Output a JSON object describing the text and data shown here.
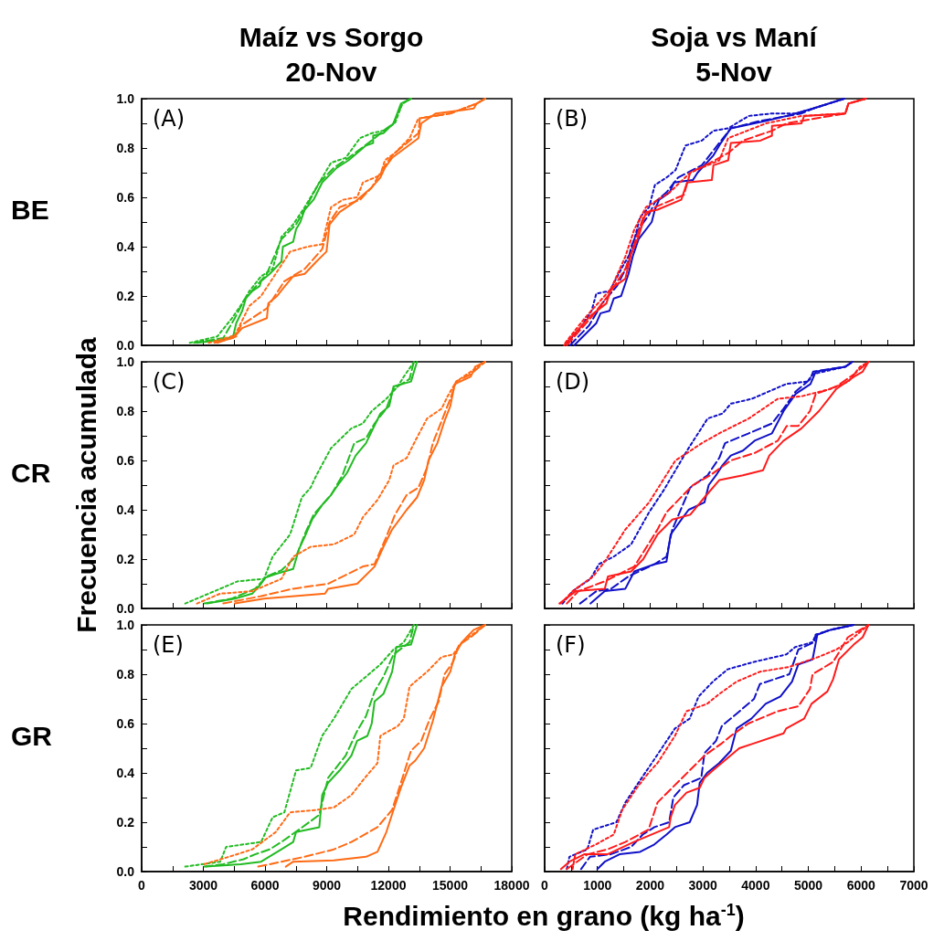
{
  "chart_data": [
    {
      "type": "line",
      "title": "Maíz vs Sorgo",
      "subtitle": "20-Nov",
      "annotations": [
        "(A)",
        "BE"
      ],
      "tick_labels": "y",
      "xlim": [
        0,
        18000
      ],
      "xticks": [
        0,
        {
          "value": 1500,
          "label": null
        },
        3000,
        {
          "value": 4500,
          "label": null
        },
        6000,
        {
          "value": 7500,
          "label": null
        },
        9000,
        {
          "value": 10500,
          "label": null
        },
        12000,
        {
          "value": 13500,
          "label": null
        },
        15000,
        {
          "value": 16500,
          "label": null
        },
        18000
      ],
      "ylim": [
        0,
        1
      ],
      "yticks": [
        {
          "value": 0,
          "label": "0.0"
        },
        {
          "value": 0.1,
          "label": null
        },
        0.2,
        {
          "value": 0.3,
          "label": null
        },
        0.4,
        {
          "value": 0.5,
          "label": null
        },
        0.6,
        {
          "value": 0.7,
          "label": null
        },
        0.8,
        {
          "value": 0.9,
          "label": null
        },
        {
          "value": 1,
          "label": "1.0"
        }
      ],
      "series": [
        {
          "color": "#22bb22",
          "line_style": "solid",
          "x": [
            2690,
            4110,
            4460,
            4600,
            4890,
            5070,
            5380,
            5740,
            5810,
            6230,
            6800,
            6870,
            7370,
            7510,
            7720,
            7930,
            8360,
            8780,
            9490,
            10060,
            10910,
            11260,
            11260,
            11760,
            12250,
            12610,
            13100
          ],
          "values": [
            0.01,
            0.024,
            0.04,
            0.09,
            0.14,
            0.19,
            0.22,
            0.24,
            0.26,
            0.29,
            0.34,
            0.4,
            0.42,
            0.47,
            0.5,
            0.55,
            0.59,
            0.66,
            0.72,
            0.75,
            0.81,
            0.82,
            0.85,
            0.86,
            0.9,
            0.98,
            1.0
          ]
        },
        {
          "color": "#22bb22",
          "line_style": "dashed",
          "x": [
            2550,
            3970,
            4530,
            5030,
            5670,
            6090,
            6800,
            7510,
            7930,
            8640,
            9350,
            10060,
            11190,
            11760,
            12250,
            12680,
            13100
          ],
          "values": [
            0.01,
            0.03,
            0.11,
            0.19,
            0.25,
            0.29,
            0.43,
            0.49,
            0.55,
            0.66,
            0.72,
            0.76,
            0.83,
            0.87,
            0.9,
            0.98,
            1.0
          ]
        },
        {
          "color": "#22bb22",
          "line_style": "dotted",
          "x": [
            2340,
            3680,
            4390,
            4890,
            5240,
            5810,
            6370,
            6800,
            7370,
            7930,
            8500,
            9210,
            9920,
            10620,
            11190,
            11760,
            12320,
            12680,
            13100
          ],
          "values": [
            0.01,
            0.036,
            0.11,
            0.17,
            0.22,
            0.28,
            0.31,
            0.44,
            0.49,
            0.56,
            0.64,
            0.74,
            0.76,
            0.84,
            0.86,
            0.87,
            0.9,
            0.98,
            1.0
          ]
        },
        {
          "color": "#ff6a14",
          "line_style": "solid",
          "x": [
            3540,
            4460,
            4890,
            6090,
            6160,
            6590,
            6870,
            7370,
            7930,
            8500,
            8990,
            9140,
            9630,
            10340,
            11190,
            11610,
            11830,
            12180,
            13460,
            13600,
            14310,
            16150,
            16290,
            16710
          ],
          "values": [
            0.01,
            0.03,
            0.07,
            0.11,
            0.17,
            0.2,
            0.23,
            0.28,
            0.29,
            0.34,
            0.38,
            0.49,
            0.54,
            0.58,
            0.64,
            0.68,
            0.72,
            0.76,
            0.84,
            0.9,
            0.94,
            0.96,
            0.98,
            1.0
          ]
        },
        {
          "color": "#ff6a14",
          "line_style": "dashed",
          "x": [
            3680,
            4600,
            4820,
            6090,
            6940,
            7930,
            8780,
            9140,
            9630,
            10620,
            11190,
            11760,
            12180,
            13460,
            13530,
            15010,
            16290,
            16710
          ],
          "values": [
            0.01,
            0.036,
            0.08,
            0.15,
            0.26,
            0.31,
            0.39,
            0.5,
            0.56,
            0.59,
            0.64,
            0.72,
            0.77,
            0.86,
            0.92,
            0.94,
            0.98,
            1.0
          ]
        },
        {
          "color": "#ff6a14",
          "line_style": "dotted",
          "x": [
            3260,
            4530,
            5240,
            5810,
            6520,
            7220,
            8070,
            8780,
            9210,
            9780,
            10480,
            10760,
            11610,
            11830,
            12320,
            13030,
            13460,
            15010,
            16290,
            16710
          ],
          "values": [
            0.01,
            0.04,
            0.16,
            0.2,
            0.29,
            0.38,
            0.4,
            0.41,
            0.56,
            0.59,
            0.6,
            0.66,
            0.69,
            0.75,
            0.78,
            0.84,
            0.92,
            0.94,
            0.98,
            1.0
          ]
        }
      ]
    },
    {
      "type": "line",
      "title": "Soja vs Maní",
      "subtitle": "5-Nov",
      "annotations": [
        "(B)"
      ],
      "tick_labels": false,
      "xlim": [
        0,
        7000
      ],
      "xticks": [
        0,
        {
          "value": 500,
          "label": null
        },
        1000,
        {
          "value": 1500,
          "label": null
        },
        2000,
        {
          "value": 2500,
          "label": null
        },
        3000,
        {
          "value": 3500,
          "label": null
        },
        4000,
        {
          "value": 4500,
          "label": null
        },
        5000,
        {
          "value": 5500,
          "label": null
        },
        6000,
        {
          "value": 6500,
          "label": null
        },
        7000
      ],
      "ylim": [
        0,
        1
      ],
      "yticks": [
        0,
        {
          "value": 0.1,
          "label": null
        },
        0.2,
        {
          "value": 0.3,
          "label": null
        },
        0.4,
        {
          "value": 0.5,
          "label": null
        },
        0.6,
        {
          "value": 0.7,
          "label": null
        },
        0.8,
        {
          "value": 0.9,
          "label": null
        },
        1
      ],
      "series": [
        {
          "color": "#1010c8",
          "line_style": "solid",
          "x": [
            560,
            980,
            1060,
            1230,
            1310,
            1450,
            1590,
            1670,
            1780,
            2030,
            2090,
            2170,
            2370,
            2450,
            2810,
            2900,
            3200,
            3340,
            3530,
            4200,
            4590,
            5090,
            5680
          ],
          "values": [
            0.0,
            0.09,
            0.13,
            0.14,
            0.19,
            0.2,
            0.29,
            0.36,
            0.43,
            0.5,
            0.55,
            0.59,
            0.62,
            0.66,
            0.67,
            0.7,
            0.77,
            0.82,
            0.88,
            0.91,
            0.93,
            0.96,
            1.0
          ]
        },
        {
          "color": "#1010c8",
          "line_style": "dashed",
          "x": [
            480,
            840,
            1090,
            1370,
            1560,
            1640,
            1780,
            1980,
            2090,
            2310,
            2530,
            2980,
            3310,
            3530,
            4090,
            4870,
            5090,
            5680
          ],
          "values": [
            0.0,
            0.08,
            0.17,
            0.24,
            0.32,
            0.4,
            0.47,
            0.53,
            0.58,
            0.62,
            0.68,
            0.73,
            0.82,
            0.88,
            0.91,
            0.94,
            0.96,
            1.0
          ]
        },
        {
          "color": "#1010c8",
          "line_style": "dotted",
          "x": [
            420,
            640,
            890,
            980,
            1230,
            1480,
            1640,
            1810,
            1980,
            2090,
            2310,
            2480,
            2670,
            2980,
            3200,
            3480,
            3870,
            4310,
            4760,
            5090,
            5680
          ],
          "values": [
            0.01,
            0.06,
            0.14,
            0.21,
            0.22,
            0.32,
            0.38,
            0.52,
            0.56,
            0.65,
            0.68,
            0.71,
            0.81,
            0.83,
            0.87,
            0.88,
            0.93,
            0.94,
            0.94,
            0.96,
            1.0
          ]
        },
        {
          "color": "#ff1a1a",
          "line_style": "solid",
          "x": [
            370,
            870,
            1170,
            1260,
            1530,
            1640,
            1780,
            1920,
            2140,
            2590,
            2700,
            3170,
            3200,
            3480,
            3530,
            4090,
            4310,
            4310,
            4870,
            4920,
            5700,
            5760,
            6090
          ],
          "values": [
            0.0,
            0.12,
            0.17,
            0.23,
            0.27,
            0.37,
            0.44,
            0.54,
            0.55,
            0.59,
            0.66,
            0.67,
            0.73,
            0.75,
            0.82,
            0.83,
            0.85,
            0.89,
            0.9,
            0.93,
            0.94,
            0.98,
            1.0
          ]
        },
        {
          "color": "#ff1a1a",
          "line_style": "dashed",
          "x": [
            420,
            870,
            1200,
            1530,
            1700,
            1870,
            2090,
            2640,
            2760,
            3140,
            3480,
            3760,
            4310,
            4590,
            5420,
            5700,
            5760,
            6090
          ],
          "values": [
            0.0,
            0.11,
            0.2,
            0.31,
            0.41,
            0.52,
            0.56,
            0.61,
            0.7,
            0.74,
            0.78,
            0.83,
            0.87,
            0.9,
            0.93,
            0.94,
            0.98,
            1.0
          ]
        },
        {
          "color": "#ff1a1a",
          "line_style": "dotted",
          "x": [
            390,
            760,
            1260,
            1530,
            1700,
            1920,
            2370,
            2760,
            3310,
            3480,
            4200,
            4870,
            5700,
            5760,
            6090
          ],
          "values": [
            0.01,
            0.11,
            0.23,
            0.36,
            0.47,
            0.56,
            0.62,
            0.7,
            0.75,
            0.84,
            0.9,
            0.93,
            0.94,
            0.98,
            1.0
          ]
        }
      ]
    },
    {
      "type": "line",
      "ylabel": "Frecuencia acumulada",
      "annotations": [
        "(C)",
        "CR"
      ],
      "tick_labels": "y",
      "xlim": [
        0,
        18000
      ],
      "xticks": [
        0,
        {
          "value": 1500,
          "label": null
        },
        3000,
        {
          "value": 4500,
          "label": null
        },
        6000,
        {
          "value": 7500,
          "label": null
        },
        9000,
        {
          "value": 10500,
          "label": null
        },
        12000,
        {
          "value": 13500,
          "label": null
        },
        15000,
        {
          "value": 16500,
          "label": null
        },
        18000
      ],
      "ylim": [
        0,
        1
      ],
      "yticks": [
        {
          "value": 0,
          "label": "0.0"
        },
        {
          "value": 0.1,
          "label": null
        },
        0.2,
        {
          "value": 0.3,
          "label": null
        },
        0.4,
        {
          "value": 0.5,
          "label": null
        },
        0.6,
        {
          "value": 0.7,
          "label": null
        },
        0.8,
        {
          "value": 0.9,
          "label": null
        },
        {
          "value": 1,
          "label": "1.0"
        }
      ],
      "series": [
        {
          "color": "#22bb22",
          "line_style": "solid",
          "x": [
            3190,
            4530,
            5380,
            5810,
            6020,
            6520,
            7370,
            7650,
            7930,
            8290,
            8780,
            9210,
            9630,
            9990,
            10410,
            10910,
            11260,
            11610,
            12040,
            12250,
            13100,
            13390
          ],
          "values": [
            0.02,
            0.04,
            0.06,
            0.1,
            0.125,
            0.14,
            0.16,
            0.24,
            0.29,
            0.36,
            0.42,
            0.46,
            0.51,
            0.55,
            0.62,
            0.67,
            0.73,
            0.79,
            0.82,
            0.9,
            0.92,
            1.0
          ]
        },
        {
          "color": "#22bb22",
          "line_style": "dashed",
          "x": [
            3050,
            4390,
            5520,
            6090,
            6800,
            7510,
            7930,
            8360,
            9210,
            9770,
            10340,
            10910,
            11330,
            11900,
            12250,
            13030,
            13240
          ],
          "values": [
            0.02,
            0.04,
            0.08,
            0.13,
            0.155,
            0.21,
            0.3,
            0.38,
            0.46,
            0.54,
            0.67,
            0.69,
            0.75,
            0.81,
            0.89,
            0.93,
            1.0
          ]
        },
        {
          "color": "#22bb22",
          "line_style": "dotted",
          "x": [
            2120,
            3400,
            4670,
            5950,
            6370,
            7220,
            7790,
            8220,
            8500,
            9210,
            10200,
            10760,
            11190,
            11900,
            12460,
            12750,
            13170,
            13240
          ],
          "values": [
            0.02,
            0.065,
            0.11,
            0.12,
            0.21,
            0.3,
            0.45,
            0.49,
            0.54,
            0.65,
            0.73,
            0.75,
            0.8,
            0.85,
            0.9,
            0.94,
            0.99,
            1.0
          ]
        },
        {
          "color": "#ff6a14",
          "line_style": "solid",
          "x": [
            4530,
            5950,
            8920,
            9070,
            10480,
            11330,
            11760,
            12180,
            12890,
            13390,
            13740,
            13950,
            14380,
            14730,
            15010,
            15230,
            16010,
            16220,
            16710
          ],
          "values": [
            0.02,
            0.04,
            0.06,
            0.08,
            0.1,
            0.17,
            0.25,
            0.32,
            0.4,
            0.45,
            0.52,
            0.6,
            0.67,
            0.76,
            0.82,
            0.91,
            0.94,
            0.98,
            1.0
          ]
        },
        {
          "color": "#ff6a14",
          "line_style": "dashed",
          "x": [
            3970,
            5810,
            7370,
            9070,
            10760,
            11330,
            11900,
            12320,
            12890,
            13460,
            13880,
            14160,
            14590,
            15010,
            15300,
            16010,
            16710
          ],
          "values": [
            0.02,
            0.05,
            0.08,
            0.1,
            0.17,
            0.18,
            0.29,
            0.38,
            0.46,
            0.49,
            0.57,
            0.67,
            0.76,
            0.85,
            0.92,
            0.95,
            1.0
          ]
        },
        {
          "color": "#ff6a14",
          "line_style": "dotted",
          "x": [
            2690,
            3820,
            5380,
            6800,
            7370,
            8220,
            9350,
            10340,
            10760,
            11470,
            12040,
            12250,
            12890,
            13310,
            13880,
            14590,
            14880,
            15300,
            16010,
            16710
          ],
          "values": [
            0.02,
            0.06,
            0.07,
            0.12,
            0.21,
            0.25,
            0.26,
            0.3,
            0.37,
            0.44,
            0.52,
            0.58,
            0.61,
            0.68,
            0.77,
            0.81,
            0.86,
            0.92,
            0.96,
            1.0
          ]
        }
      ]
    },
    {
      "type": "line",
      "annotations": [
        "(D)"
      ],
      "tick_labels": false,
      "xlim": [
        0,
        7000
      ],
      "xticks": [
        0,
        {
          "value": 500,
          "label": null
        },
        1000,
        {
          "value": 1500,
          "label": null
        },
        2000,
        {
          "value": 2500,
          "label": null
        },
        3000,
        {
          "value": 3500,
          "label": null
        },
        4000,
        {
          "value": 4500,
          "label": null
        },
        5000,
        {
          "value": 5500,
          "label": null
        },
        6000,
        {
          "value": 6500,
          "label": null
        },
        7000
      ],
      "ylim": [
        0,
        1
      ],
      "yticks": [
        0,
        {
          "value": 0.1,
          "label": null
        },
        0.2,
        {
          "value": 0.3,
          "label": null
        },
        0.4,
        {
          "value": 0.5,
          "label": null
        },
        0.6,
        {
          "value": 0.7,
          "label": null
        },
        0.8,
        {
          "value": 0.9,
          "label": null
        },
        1
      ],
      "series": [
        {
          "color": "#1010c8",
          "line_style": "solid",
          "x": [
            870,
            1140,
            1530,
            1700,
            2090,
            2310,
            2390,
            2590,
            2730,
            3030,
            3110,
            3250,
            3370,
            3530,
            3760,
            3980,
            4310,
            4530,
            4760,
            5040,
            5140,
            5700,
            5840
          ],
          "values": [
            0.02,
            0.07,
            0.08,
            0.15,
            0.18,
            0.19,
            0.3,
            0.36,
            0.4,
            0.43,
            0.5,
            0.54,
            0.58,
            0.62,
            0.64,
            0.68,
            0.71,
            0.8,
            0.87,
            0.91,
            0.96,
            0.98,
            1.0
          ]
        },
        {
          "color": "#1010c8",
          "line_style": "dashed",
          "x": [
            670,
            980,
            1260,
            1590,
            2090,
            2310,
            2420,
            2760,
            3090,
            3310,
            3420,
            3870,
            4310,
            4530,
            4760,
            5040,
            5090,
            5700,
            5840
          ],
          "values": [
            0.02,
            0.07,
            0.08,
            0.13,
            0.18,
            0.21,
            0.32,
            0.49,
            0.54,
            0.61,
            0.67,
            0.71,
            0.75,
            0.81,
            0.88,
            0.93,
            0.96,
            0.98,
            1.0
          ]
        },
        {
          "color": "#1010c8",
          "line_style": "dotted",
          "x": [
            340,
            530,
            870,
            1030,
            1310,
            1640,
            1980,
            2260,
            2480,
            2700,
            3090,
            3370,
            3530,
            3930,
            4580,
            4980,
            5090,
            5700,
            5840
          ],
          "values": [
            0.02,
            0.07,
            0.12,
            0.18,
            0.21,
            0.26,
            0.39,
            0.48,
            0.56,
            0.64,
            0.77,
            0.79,
            0.83,
            0.85,
            0.91,
            0.92,
            0.95,
            0.98,
            1.0
          ]
        },
        {
          "color": "#ff1a1a",
          "line_style": "solid",
          "x": [
            280,
            590,
            1140,
            1200,
            1640,
            1870,
            2140,
            2420,
            2760,
            3030,
            3310,
            3760,
            4140,
            4260,
            4530,
            4870,
            5200,
            5420,
            5530,
            5870,
            6030,
            6140
          ],
          "values": [
            0.02,
            0.07,
            0.08,
            0.13,
            0.15,
            0.2,
            0.3,
            0.36,
            0.38,
            0.45,
            0.52,
            0.54,
            0.56,
            0.62,
            0.68,
            0.73,
            0.8,
            0.86,
            0.89,
            0.94,
            0.96,
            1.0
          ]
        },
        {
          "color": "#ff1a1a",
          "line_style": "dashed",
          "x": [
            420,
            640,
            1140,
            1700,
            2140,
            2310,
            2810,
            3140,
            3530,
            3980,
            4420,
            4590,
            4810,
            5030,
            5140,
            5530,
            5870,
            6140
          ],
          "values": [
            0.02,
            0.07,
            0.11,
            0.17,
            0.32,
            0.39,
            0.5,
            0.54,
            0.6,
            0.63,
            0.68,
            0.74,
            0.74,
            0.8,
            0.87,
            0.9,
            0.95,
            1.0
          ]
        },
        {
          "color": "#ff1a1a",
          "line_style": "dotted",
          "x": [
            310,
            530,
            920,
            1140,
            1530,
            1980,
            2480,
            2700,
            2980,
            3310,
            3870,
            4420,
            4870,
            5420,
            5760,
            5980,
            6140
          ],
          "values": [
            0.02,
            0.07,
            0.13,
            0.19,
            0.32,
            0.43,
            0.6,
            0.63,
            0.67,
            0.71,
            0.77,
            0.85,
            0.86,
            0.89,
            0.92,
            0.98,
            1.0
          ]
        }
      ]
    },
    {
      "type": "line",
      "xlabel": "Rendimiento en grano (kg ha$^{-1}$)",
      "annotations": [
        "(E)",
        "GR"
      ],
      "xlim": [
        0,
        18000
      ],
      "xticks": [
        0,
        {
          "value": 1500,
          "label": null
        },
        3000,
        {
          "value": 4500,
          "label": null
        },
        6000,
        {
          "value": 7500,
          "label": null
        },
        9000,
        {
          "value": 10500,
          "label": null
        },
        12000,
        {
          "value": 13500,
          "label": null
        },
        15000,
        {
          "value": 16500,
          "label": null
        },
        18000
      ],
      "ylim": [
        0,
        1
      ],
      "yticks": [
        {
          "value": 0,
          "label": "0.0"
        },
        {
          "value": 0.1,
          "label": null
        },
        0.2,
        {
          "value": 0.3,
          "label": null
        },
        0.4,
        {
          "value": 0.5,
          "label": null
        },
        0.6,
        {
          "value": 0.7,
          "label": null
        },
        0.8,
        {
          "value": 0.9,
          "label": null
        },
        {
          "value": 1,
          "label": "1.0"
        }
      ],
      "series": [
        {
          "color": "#22bb22",
          "line_style": "solid",
          "x": [
            3120,
            4820,
            5810,
            6800,
            7370,
            7510,
            8640,
            8780,
            9070,
            9630,
            10200,
            10480,
            10980,
            11190,
            11330,
            11760,
            12180,
            12390,
            13100,
            13390
          ],
          "values": [
            0.02,
            0.03,
            0.04,
            0.09,
            0.12,
            0.16,
            0.18,
            0.31,
            0.36,
            0.41,
            0.47,
            0.53,
            0.55,
            0.6,
            0.69,
            0.72,
            0.81,
            0.91,
            0.92,
            1.0
          ]
        },
        {
          "color": "#22bb22",
          "line_style": "dashed",
          "x": [
            3050,
            3970,
            4960,
            5520,
            6230,
            6800,
            7650,
            8640,
            9070,
            9920,
            10480,
            10910,
            11330,
            11760,
            12250,
            13030,
            13240
          ],
          "values": [
            0.02,
            0.03,
            0.05,
            0.07,
            0.09,
            0.12,
            0.17,
            0.23,
            0.38,
            0.47,
            0.57,
            0.63,
            0.73,
            0.79,
            0.88,
            0.93,
            1.0
          ]
        },
        {
          "color": "#22bb22",
          "line_style": "dotted",
          "x": [
            2120,
            3820,
            4110,
            5810,
            6370,
            6940,
            7510,
            8220,
            8780,
            9350,
            10200,
            11050,
            11610,
            12250,
            12750,
            13240
          ],
          "values": [
            0.02,
            0.04,
            0.1,
            0.12,
            0.22,
            0.24,
            0.41,
            0.42,
            0.55,
            0.62,
            0.74,
            0.8,
            0.84,
            0.9,
            0.93,
            1.0
          ]
        },
        {
          "color": "#ff6a14",
          "line_style": "solid",
          "x": [
            7010,
            7370,
            9350,
            10910,
            11470,
            11900,
            12250,
            12610,
            13030,
            13310,
            13740,
            14160,
            14590,
            15010,
            15230,
            15580,
            16150,
            16710
          ],
          "values": [
            0.02,
            0.04,
            0.045,
            0.06,
            0.08,
            0.16,
            0.25,
            0.34,
            0.43,
            0.45,
            0.5,
            0.61,
            0.75,
            0.81,
            0.88,
            0.93,
            0.98,
            1.0
          ]
        },
        {
          "color": "#ff6a14",
          "line_style": "dashed",
          "x": [
            5670,
            6800,
            7930,
            9350,
            10200,
            11470,
            12180,
            12610,
            13100,
            13600,
            14020,
            14450,
            14730,
            15150,
            15440,
            16010,
            16710
          ],
          "values": [
            0.02,
            0.04,
            0.06,
            0.09,
            0.12,
            0.18,
            0.25,
            0.36,
            0.49,
            0.53,
            0.62,
            0.69,
            0.8,
            0.85,
            0.92,
            0.95,
            1.0
          ]
        },
        {
          "color": "#ff6a14",
          "line_style": "dotted",
          "x": [
            3050,
            4250,
            5380,
            6520,
            7220,
            8500,
            9350,
            10200,
            10760,
            11470,
            11610,
            12460,
            12750,
            13030,
            13880,
            14590,
            15150,
            15580,
            16710
          ],
          "values": [
            0.03,
            0.06,
            0.09,
            0.16,
            0.24,
            0.25,
            0.26,
            0.31,
            0.37,
            0.44,
            0.55,
            0.59,
            0.62,
            0.75,
            0.81,
            0.87,
            0.88,
            0.93,
            1.0
          ]
        }
      ]
    },
    {
      "type": "line",
      "annotations": [
        "(F)"
      ],
      "tick_labels": "x",
      "xlim": [
        0,
        7000
      ],
      "xticks": [
        0,
        {
          "value": 500,
          "label": null
        },
        1000,
        {
          "value": 1500,
          "label": null
        },
        2000,
        {
          "value": 2500,
          "label": null
        },
        3000,
        {
          "value": 3500,
          "label": null
        },
        4000,
        {
          "value": 4500,
          "label": null
        },
        5000,
        {
          "value": 5500,
          "label": null
        },
        6000,
        {
          "value": 6500,
          "label": null
        },
        7000
      ],
      "ylim": [
        0,
        1
      ],
      "yticks": [
        0,
        {
          "value": 0.1,
          "label": null
        },
        0.2,
        {
          "value": 0.3,
          "label": null
        },
        0.4,
        {
          "value": 0.5,
          "label": null
        },
        0.6,
        {
          "value": 0.7,
          "label": null
        },
        0.8,
        {
          "value": 0.9,
          "label": null
        },
        1
      ],
      "series": [
        {
          "color": "#1010c8",
          "line_style": "solid",
          "x": [
            1000,
            1140,
            1420,
            1810,
            2080,
            2310,
            2470,
            2750,
            2890,
            2940,
            3080,
            3310,
            3530,
            3640,
            3920,
            4190,
            4470,
            4690,
            4810,
            5080,
            5170,
            5420,
            5860
          ],
          "values": [
            0.01,
            0.04,
            0.07,
            0.08,
            0.11,
            0.15,
            0.18,
            0.2,
            0.27,
            0.36,
            0.4,
            0.44,
            0.49,
            0.58,
            0.62,
            0.68,
            0.71,
            0.77,
            0.84,
            0.86,
            0.96,
            0.98,
            1.0
          ]
        },
        {
          "color": "#1010c8",
          "line_style": "dashed",
          "x": [
            690,
            860,
            1250,
            1640,
            1860,
            2080,
            2360,
            2440,
            2640,
            2970,
            3030,
            3250,
            3360,
            3640,
            3970,
            4080,
            4640,
            4810,
            5110,
            5140,
            5420,
            5860
          ],
          "values": [
            0.01,
            0.06,
            0.07,
            0.1,
            0.15,
            0.18,
            0.2,
            0.3,
            0.35,
            0.38,
            0.48,
            0.53,
            0.59,
            0.64,
            0.7,
            0.76,
            0.8,
            0.9,
            0.93,
            0.96,
            0.98,
            1.0
          ]
        },
        {
          "color": "#1010c8",
          "line_style": "dotted",
          "x": [
            420,
            470,
            810,
            920,
            1360,
            1530,
            1810,
            2190,
            2470,
            2750,
            2920,
            3190,
            3470,
            3970,
            4580,
            4750,
            5080,
            5140,
            5420,
            5860
          ],
          "values": [
            0.01,
            0.06,
            0.09,
            0.17,
            0.2,
            0.28,
            0.37,
            0.49,
            0.58,
            0.62,
            0.71,
            0.77,
            0.82,
            0.85,
            0.88,
            0.91,
            0.93,
            0.96,
            0.98,
            1.0
          ]
        },
        {
          "color": "#ff1a1a",
          "line_style": "solid",
          "x": [
            310,
            470,
            750,
            1190,
            1690,
            2360,
            2390,
            2470,
            2690,
            2940,
            3030,
            3190,
            3690,
            3970,
            4530,
            4580,
            4920,
            5060,
            5360,
            5470,
            5580,
            5860,
            6030,
            6140
          ],
          "values": [
            0.01,
            0.04,
            0.07,
            0.07,
            0.12,
            0.18,
            0.22,
            0.27,
            0.32,
            0.34,
            0.38,
            0.41,
            0.5,
            0.52,
            0.56,
            0.58,
            0.62,
            0.68,
            0.73,
            0.78,
            0.86,
            0.92,
            0.95,
            1.0
          ]
        },
        {
          "color": "#ff1a1a",
          "line_style": "dashed",
          "x": [
            420,
            810,
            1190,
            1530,
            1970,
            2140,
            2420,
            2750,
            3030,
            3360,
            3530,
            3860,
            4420,
            4810,
            5030,
            5080,
            5470,
            5640,
            5750,
            6140
          ],
          "values": [
            0.01,
            0.07,
            0.09,
            0.12,
            0.17,
            0.28,
            0.34,
            0.41,
            0.47,
            0.52,
            0.55,
            0.6,
            0.65,
            0.67,
            0.74,
            0.8,
            0.85,
            0.91,
            0.95,
            1.0
          ]
        },
        {
          "color": "#ff1a1a",
          "line_style": "dotted",
          "x": [
            530,
            580,
            970,
            1310,
            1470,
            1750,
            1970,
            2140,
            2470,
            2690,
            3080,
            3310,
            3640,
            4080,
            4640,
            5190,
            5530,
            5750,
            6140
          ],
          "values": [
            0.01,
            0.07,
            0.11,
            0.15,
            0.25,
            0.34,
            0.4,
            0.44,
            0.55,
            0.65,
            0.68,
            0.72,
            0.77,
            0.81,
            0.83,
            0.87,
            0.9,
            0.93,
            1.0
          ]
        }
      ]
    }
  ]
}
